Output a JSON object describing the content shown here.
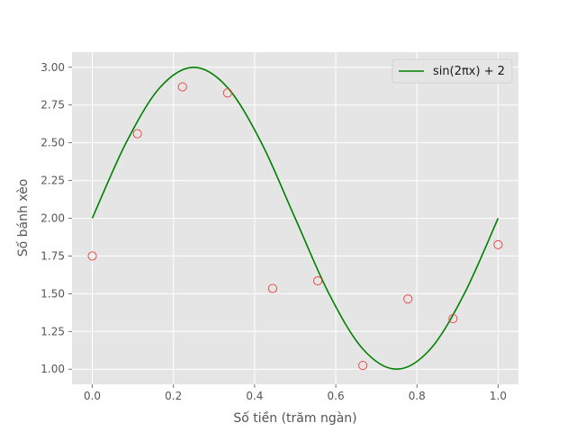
{
  "chart_data": {
    "type": "line",
    "xlabel": "Số tiền (trăm ngàn)",
    "ylabel": "Số bánh xèo",
    "xlim": [
      -0.05,
      1.05
    ],
    "ylim": [
      0.9,
      3.1
    ],
    "x_ticks": [
      "0.0",
      "0.2",
      "0.4",
      "0.6",
      "0.8",
      "1.0"
    ],
    "y_ticks": [
      "1.00",
      "1.25",
      "1.50",
      "1.75",
      "2.00",
      "2.25",
      "2.50",
      "2.75",
      "3.00"
    ],
    "grid": true,
    "legend_position": "top-right",
    "series": [
      {
        "name": "sin(2πx) + 2",
        "kind": "line",
        "color": "#008000",
        "x": [
          0,
          0.0833,
          0.1667,
          0.25,
          0.3333,
          0.4167,
          0.5,
          0.5833,
          0.6667,
          0.75,
          0.8333,
          0.9167,
          1.0
        ],
        "y": [
          2.0,
          2.5,
          2.866,
          3.0,
          2.866,
          2.5,
          2.0,
          1.5,
          1.134,
          1.0,
          1.134,
          1.5,
          2.0
        ]
      },
      {
        "kind": "scatter",
        "color": "#e8403a",
        "x": [
          0.0,
          0.1111,
          0.2222,
          0.3333,
          0.4444,
          0.5556,
          0.6667,
          0.7778,
          0.8889,
          1.0
        ],
        "y": [
          1.75,
          2.56,
          2.87,
          2.83,
          1.535,
          1.585,
          1.025,
          1.465,
          1.335,
          1.825
        ]
      }
    ]
  }
}
